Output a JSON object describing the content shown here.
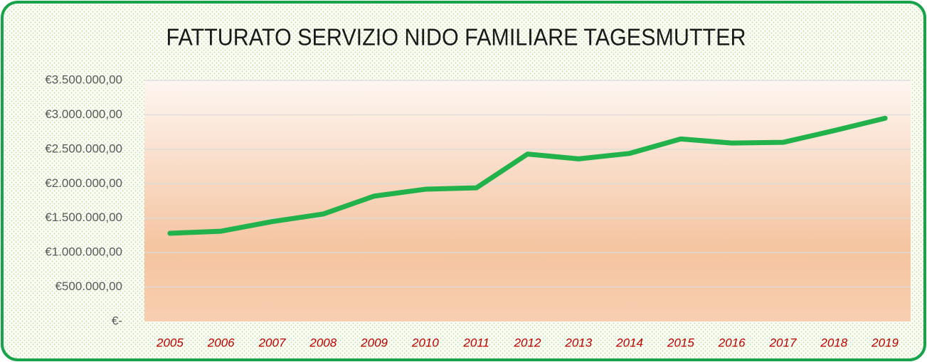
{
  "chart_data": {
    "type": "line",
    "title": "FATTURATO SERVIZIO NIDO FAMILIARE TAGESMUTTER",
    "categories": [
      "2005",
      "2006",
      "2007",
      "2008",
      "2009",
      "2010",
      "2011",
      "2012",
      "2013",
      "2014",
      "2015",
      "2016",
      "2017",
      "2018",
      "2019"
    ],
    "series": [
      {
        "name": "Fatturato",
        "color": "#22b24c",
        "values": [
          1280000,
          1310000,
          1450000,
          1560000,
          1820000,
          1920000,
          1940000,
          2430000,
          2360000,
          2440000,
          2650000,
          2590000,
          2600000,
          2770000,
          2950000
        ]
      }
    ],
    "ylim": [
      0,
      3500000
    ],
    "yticks": [
      {
        "value": 0,
        "label": "€-"
      },
      {
        "value": 500000,
        "label": "€500.000,00"
      },
      {
        "value": 1000000,
        "label": "€1.000.000,00"
      },
      {
        "value": 1500000,
        "label": "€1.500.000,00"
      },
      {
        "value": 2000000,
        "label": "€2.000.000,00"
      },
      {
        "value": 2500000,
        "label": "€2.500.000,00"
      },
      {
        "value": 3000000,
        "label": "€3.000.000,00"
      },
      {
        "value": 3500000,
        "label": "€3.500.000,00"
      }
    ],
    "grid": true
  }
}
